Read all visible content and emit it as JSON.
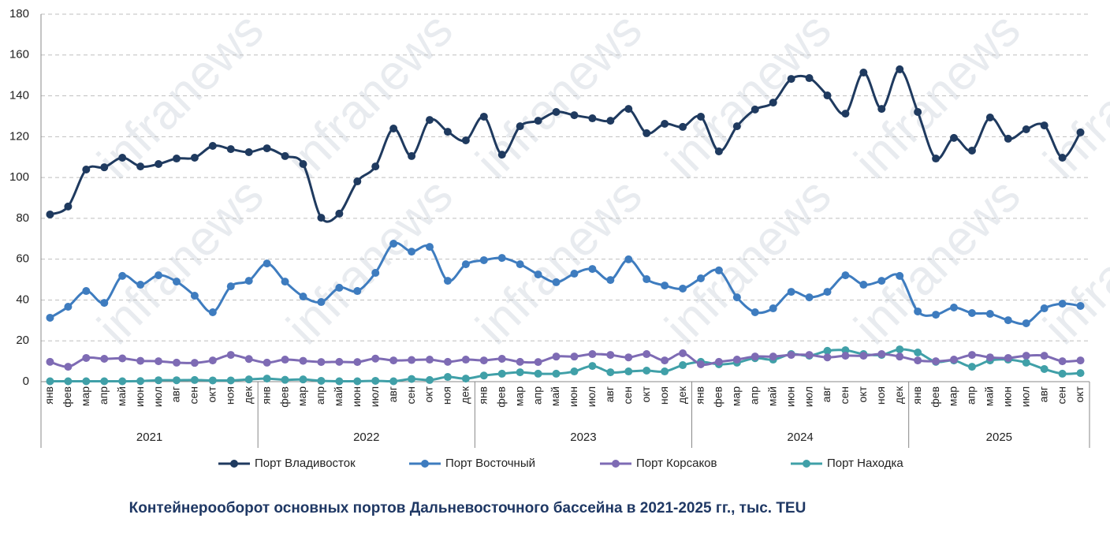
{
  "chart_data": {
    "type": "line",
    "title": "Контейнерооборот основных портов Дальневосточного бассейна в 2021-2025 гг., тыс. TEU",
    "watermark": "infranews",
    "categories": [
      "янв",
      "фев",
      "мар",
      "апр",
      "май",
      "июн",
      "июл",
      "авг",
      "сен",
      "окт",
      "ноя",
      "дек",
      "янв",
      "фев",
      "мар",
      "апр",
      "май",
      "июн",
      "июл",
      "авг",
      "сен",
      "окт",
      "ноя",
      "дек",
      "янв",
      "фев",
      "мар",
      "апр",
      "май",
      "июн",
      "июл",
      "авг",
      "сен",
      "окт",
      "ноя",
      "дек",
      "янв",
      "фев",
      "мар",
      "апр",
      "май",
      "июн",
      "июл",
      "авг",
      "сен",
      "окт",
      "ноя",
      "дек",
      "янв",
      "фев",
      "мар",
      "апр",
      "май",
      "июн",
      "июл",
      "авг",
      "сен",
      "окт"
    ],
    "groups": [
      "2021",
      "2022",
      "2023",
      "2024",
      "2025"
    ],
    "series": [
      {
        "name": "Порт Владивосток",
        "color": "#1f3a5f",
        "values": [
          81.9,
          85.8,
          103.9,
          105,
          109.7,
          105.4,
          106.6,
          109.3,
          109.7,
          115.5,
          113.9,
          112.4,
          114.3,
          110.5,
          106.6,
          80.3,
          82.3,
          98.1,
          105.4,
          124,
          110.5,
          128.2,
          122.4,
          118.2,
          129.8,
          111.2,
          125.1,
          127.8,
          132.1,
          130.5,
          129,
          127.8,
          133.6,
          121.7,
          126.3,
          124.8,
          129.8,
          112.8,
          125.1,
          133.3,
          136.7,
          148.3,
          148.7,
          140.2,
          131.3,
          151.4,
          133.6,
          153,
          132.1,
          109.3,
          119.4,
          113.2,
          129.4,
          119,
          123.6,
          125.5,
          109.7,
          122.1
        ]
      },
      {
        "name": "Порт Восточный",
        "color": "#3e7cbf",
        "values": [
          31.3,
          36.7,
          44.4,
          38.6,
          51.8,
          47.5,
          52.1,
          49,
          42.1,
          34,
          46.7,
          49.4,
          57.9,
          49,
          41.7,
          39,
          46,
          44.4,
          53.3,
          67.6,
          63.7,
          66,
          49.4,
          57.5,
          59.5,
          60.6,
          57.5,
          52.5,
          48.7,
          52.9,
          55.2,
          49.8,
          59.9,
          50.2,
          47.1,
          45.6,
          50.6,
          54.5,
          41.3,
          34,
          35.9,
          44,
          41.3,
          44,
          52.1,
          47.5,
          49.4,
          51.8,
          34.4,
          32.8,
          36.3,
          33.6,
          33.2,
          30.1,
          28.6,
          35.9,
          38.2,
          37.1
        ]
      },
      {
        "name": "Порт Корсаков",
        "color": "#7e6bb4",
        "values": [
          9.7,
          7.3,
          11.6,
          11.2,
          11.4,
          10.2,
          10,
          9.3,
          9.2,
          10.4,
          13.1,
          11.1,
          9.3,
          10.8,
          10.2,
          9.6,
          9.7,
          9.6,
          11.3,
          10.4,
          10.6,
          10.8,
          9.7,
          10.8,
          10.4,
          11.2,
          9.7,
          9.6,
          12.3,
          12.3,
          13.5,
          13.1,
          11.9,
          13.5,
          10.4,
          13.9,
          8.5,
          9.7,
          10.8,
          12.3,
          12.3,
          13.1,
          13.1,
          11.9,
          12.7,
          12.7,
          13.5,
          12.3,
          10.4,
          10,
          10.8,
          13.1,
          11.9,
          11.6,
          12.7,
          12.7,
          10,
          10.4
        ]
      },
      {
        "name": "Порт Находка",
        "color": "#40a0a8",
        "values": [
          0.2,
          0.2,
          0.2,
          0.2,
          0.2,
          0.3,
          0.7,
          0.7,
          0.8,
          0.6,
          0.6,
          1.1,
          1.5,
          0.9,
          1.1,
          0.4,
          0.2,
          0.2,
          0.4,
          0.2,
          1.3,
          0.8,
          2.3,
          1.5,
          3,
          3.9,
          4.6,
          3.9,
          3.9,
          5,
          7.7,
          4.6,
          5,
          5.4,
          5,
          8.1,
          9.7,
          8.5,
          9.3,
          11.5,
          10.8,
          13.5,
          12.7,
          15.1,
          15.4,
          13.5,
          13.1,
          15.8,
          14.3,
          9.7,
          10.4,
          7.3,
          10.4,
          10.8,
          9.3,
          6.2,
          3.9,
          4.2
        ]
      }
    ],
    "ylim": [
      0,
      180
    ],
    "yticks": [
      0,
      20,
      40,
      60,
      80,
      100,
      120,
      140,
      160,
      180
    ],
    "grid": true
  }
}
